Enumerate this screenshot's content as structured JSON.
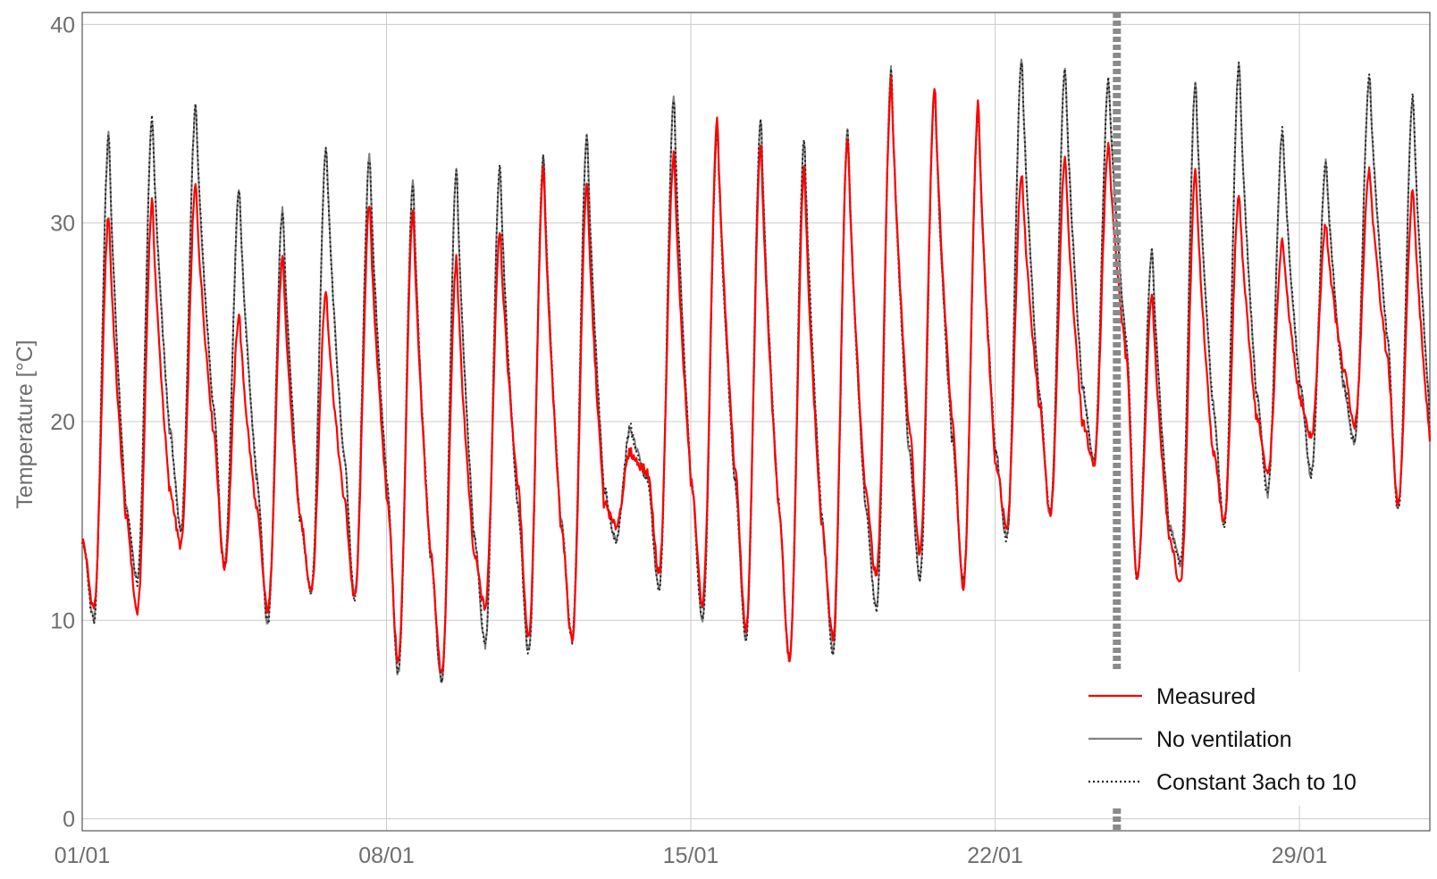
{
  "chart_data": {
    "type": "line",
    "title": "",
    "xlabel": "",
    "ylabel": "Temperature [°C]",
    "x_ticks": [
      "01/01",
      "08/01",
      "15/01",
      "22/01",
      "29/01"
    ],
    "x_tick_days": [
      1,
      8,
      15,
      22,
      29
    ],
    "xlim_days": [
      1,
      32
    ],
    "y_ticks": [
      0,
      10,
      20,
      30,
      40
    ],
    "ylim": [
      -0.6,
      40.6
    ],
    "grid": true,
    "legend_position": "bottom-right",
    "marker_line_day": 24.8,
    "day_peaks": [
      {
        "peak": 34.6,
        "trough": 8.3,
        "m_peak": 30.5,
        "m_trough": 9.2
      },
      {
        "peak": 35.4,
        "trough": 13.5,
        "m_peak": 31.2,
        "m_trough": 10.9
      },
      {
        "peak": 36.0,
        "trough": 15.0,
        "m_peak": 32.0,
        "m_trough": 15.0
      },
      {
        "peak": 31.8,
        "trough": 11.7,
        "m_peak": 25.5,
        "m_trough": 11.7
      },
      {
        "peak": 30.8,
        "trough": 9.1,
        "m_peak": 28.3,
        "m_trough": 10.0
      },
      {
        "peak": 34.0,
        "trough": 12.5,
        "m_peak": 26.7,
        "m_trough": 12.3
      },
      {
        "peak": 33.4,
        "trough": 10.6,
        "m_peak": 31.0,
        "m_trough": 10.6
      },
      {
        "peak": 32.2,
        "trough": 6.0,
        "m_peak": 30.8,
        "m_trough": 6.8
      },
      {
        "peak": 32.8,
        "trough": 7.3,
        "m_peak": 28.3,
        "m_trough": 7.5
      },
      {
        "peak": 33.0,
        "trough": 9.4,
        "m_peak": 29.8,
        "m_trough": 12.0
      },
      {
        "peak": 33.5,
        "trough": 8.0,
        "m_peak": 32.8,
        "m_trough": 8.0
      },
      {
        "peak": 34.7,
        "trough": 9.5,
        "m_peak": 32.2,
        "m_trough": 9.5
      },
      {
        "peak": 19.8,
        "trough": 15.9,
        "m_peak": 18.5,
        "m_trough": 17.0
      },
      {
        "peak": 36.4,
        "trough": 9.6,
        "m_peak": 33.6,
        "m_trough": 10.5
      },
      {
        "peak": 35.0,
        "trough": 10.2,
        "m_peak": 35.2,
        "m_trough": 11.0
      },
      {
        "peak": 35.4,
        "trough": 8.6,
        "m_peak": 34.2,
        "m_trough": 9.0
      },
      {
        "peak": 34.4,
        "trough": 7.8,
        "m_peak": 32.8,
        "m_trough": 7.8
      },
      {
        "peak": 34.8,
        "trough": 8.6,
        "m_peak": 34.5,
        "m_trough": 9.7
      },
      {
        "peak": 37.8,
        "trough": 11.5,
        "m_peak": 37.3,
        "m_trough": 13.3
      },
      {
        "peak": 36.8,
        "trough": 12.4,
        "m_peak": 37.0,
        "m_trough": 13.5
      },
      {
        "peak": 35.8,
        "trough": 11.8,
        "m_peak": 36.1,
        "m_trough": 10.9
      },
      {
        "peak": 38.4,
        "trough": 15.0,
        "m_peak": 32.6,
        "m_trough": 16.5
      },
      {
        "peak": 37.9,
        "trough": 15.5,
        "m_peak": 33.4,
        "m_trough": 14.8
      },
      {
        "peak": 37.4,
        "trough": 19.0,
        "m_peak": 34.0,
        "m_trough": 19.2
      },
      {
        "peak": 28.8,
        "trough": 9.2,
        "m_peak": 26.5,
        "m_trough": 9.2
      },
      {
        "peak": 37.3,
        "trough": 14.5,
        "m_peak": 32.8,
        "m_trough": 13.0
      },
      {
        "peak": 38.2,
        "trough": 15.0,
        "m_peak": 31.5,
        "m_trough": 16.0
      },
      {
        "peak": 34.8,
        "trough": 17.0,
        "m_peak": 29.2,
        "m_trough": 18.0
      },
      {
        "peak": 33.2,
        "trough": 17.5,
        "m_peak": 30.0,
        "m_trough": 19.8
      },
      {
        "peak": 37.5,
        "trough": 19.5,
        "m_peak": 32.8,
        "m_trough": 19.8
      },
      {
        "peak": 36.6,
        "trough": 13.8,
        "m_peak": 31.8,
        "m_trough": 14.2
      }
    ],
    "start_value": 14.0,
    "end_value": 19.0,
    "series": [
      {
        "name": "Measured",
        "color": "#ff0000",
        "style": "solid"
      },
      {
        "name": "No ventilation",
        "color": "#808080",
        "style": "solid"
      },
      {
        "name": "Constant 3ach to 10",
        "color": "#222222",
        "style": "dotted"
      }
    ]
  }
}
